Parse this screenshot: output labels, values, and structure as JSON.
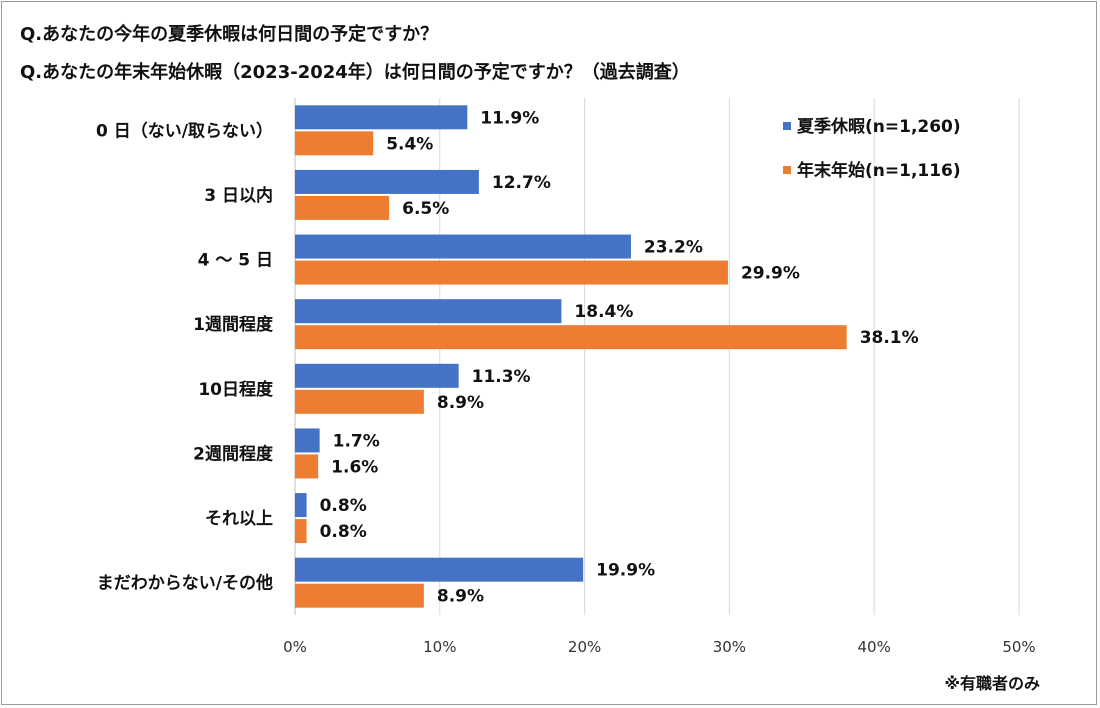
{
  "titles": [
    "Q.あなたの今年の夏季休暇は何日間の予定ですか？",
    "Q.あなたの年末年始休暇（2023-2024年）は何日間の予定ですか？（過去調査）"
  ],
  "note": "※有職者のみ",
  "chart_data": {
    "type": "bar",
    "orientation": "horizontal",
    "categories": [
      "0 日（ない/取らない）",
      "3 日以内",
      "4 ～ 5 日",
      "1週間程度",
      "10日程度",
      "2週間程度",
      "それ以上",
      "まだわからない/その他"
    ],
    "series": [
      {
        "name": "夏季休暇(n=1,260)",
        "color": "#4472C4",
        "values": [
          11.9,
          12.7,
          23.2,
          18.4,
          11.3,
          1.7,
          0.8,
          19.9
        ]
      },
      {
        "name": "年末年始(n=1,116)",
        "color": "#ED7D31",
        "values": [
          5.4,
          6.5,
          29.9,
          38.1,
          8.9,
          1.6,
          0.8,
          8.9
        ]
      }
    ],
    "xlim": [
      0,
      50
    ],
    "ticks": [
      0,
      10,
      20,
      30,
      40,
      50
    ],
    "tick_labels": [
      "0%",
      "10%",
      "20%",
      "30%",
      "40%",
      "50%"
    ],
    "value_suffix": "%",
    "grid": true,
    "legend_position": "top-right"
  }
}
